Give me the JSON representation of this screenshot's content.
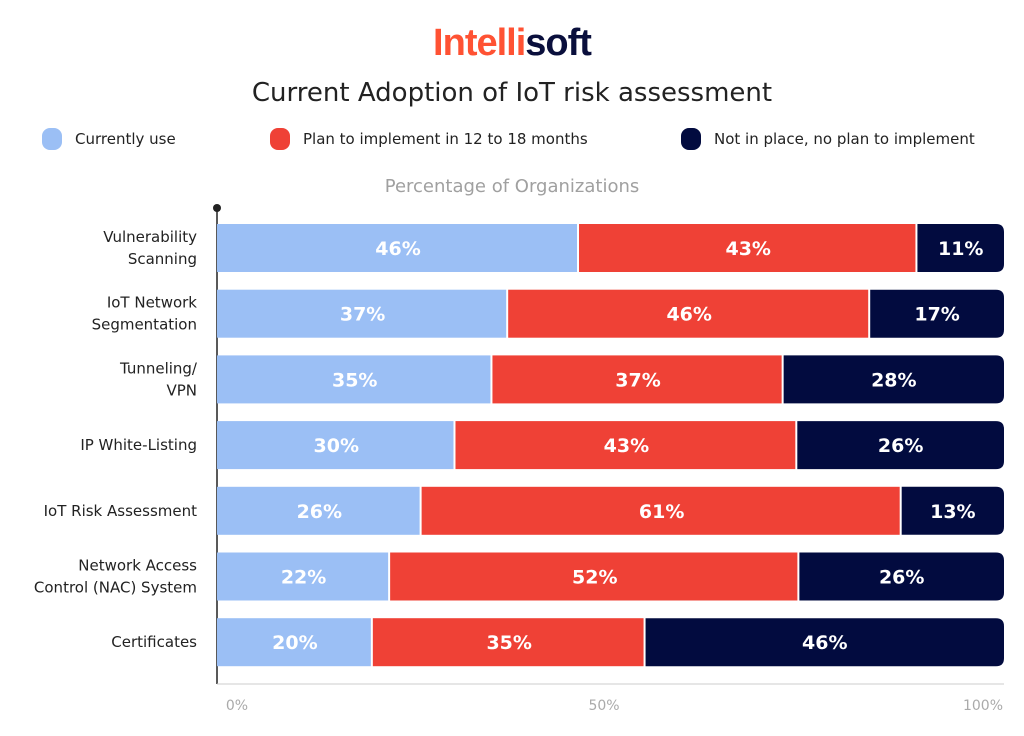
{
  "logo": {
    "part1": "Intelli",
    "part2": "soft"
  },
  "chart_data": {
    "type": "bar",
    "orientation": "horizontal",
    "stacked": true,
    "title": "Current Adoption of IoT risk assessment",
    "xlabel": "Percentage of Organizations",
    "ylabel": "",
    "xlim": [
      0,
      100
    ],
    "xticks": [
      "0%",
      "50%",
      "100%"
    ],
    "grid": false,
    "legend_position": "top",
    "categories": [
      [
        "Vulnerability",
        "Scanning"
      ],
      [
        "IoT Network",
        "Segmentation"
      ],
      [
        "Tunneling/",
        "VPN"
      ],
      [
        "IP White-Listing"
      ],
      [
        "IoT Risk Assessment"
      ],
      [
        "Network Access",
        "Control (NAC) System"
      ],
      [
        "Certificates"
      ]
    ],
    "series": [
      {
        "name": "Currently use",
        "color": "#9bbff5",
        "values": [
          46,
          37,
          35,
          30,
          26,
          22,
          20
        ]
      },
      {
        "name": "Plan to implement in 12 to 18 months",
        "color": "#ef4136",
        "values": [
          43,
          46,
          37,
          43,
          61,
          52,
          35
        ]
      },
      {
        "name": "Not in place, no plan to implement",
        "color": "#020b3f",
        "values": [
          11,
          17,
          28,
          26,
          13,
          26,
          46
        ]
      }
    ]
  }
}
